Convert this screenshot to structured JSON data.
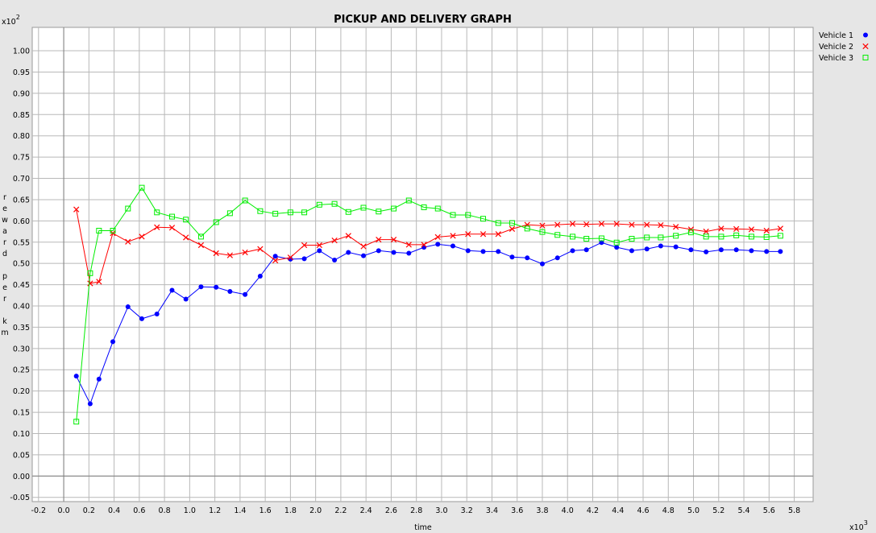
{
  "chart_data": {
    "type": "line",
    "title": "PICKUP AND DELIVERY GRAPH",
    "xlabel": "time",
    "ylabel": "reward per km",
    "x_scale_label": "x10",
    "x_scale_exp": "3",
    "y_scale_label": "x10",
    "y_scale_exp": "2",
    "xlim": [
      -0.25,
      5.95
    ],
    "ylim": [
      -0.06,
      1.055
    ],
    "x_ticks": [
      "-0.2",
      "0.0",
      "0.2",
      "0.4",
      "0.6",
      "0.8",
      "1.0",
      "1.2",
      "1.4",
      "1.6",
      "1.8",
      "2.0",
      "2.2",
      "2.4",
      "2.6",
      "2.8",
      "3.0",
      "3.2",
      "3.4",
      "3.6",
      "3.8",
      "4.0",
      "4.2",
      "4.4",
      "4.6",
      "4.8",
      "5.0",
      "5.2",
      "5.4",
      "5.6",
      "5.8"
    ],
    "y_ticks": [
      "-0.05",
      "0.00",
      "0.05",
      "0.10",
      "0.15",
      "0.20",
      "0.25",
      "0.30",
      "0.35",
      "0.40",
      "0.45",
      "0.50",
      "0.55",
      "0.60",
      "0.65",
      "0.70",
      "0.75",
      "0.80",
      "0.85",
      "0.90",
      "0.95",
      "1.00"
    ],
    "grid": true,
    "legend_position": "top-right",
    "series": [
      {
        "name": "Vehicle 1",
        "color": "#0000ff",
        "marker": "circle",
        "x": [
          0.1,
          0.21,
          0.28,
          0.39,
          0.51,
          0.62,
          0.74,
          0.86,
          0.97,
          1.09,
          1.21,
          1.32,
          1.44,
          1.56,
          1.68,
          1.8,
          1.91,
          2.03,
          2.15,
          2.26,
          2.38,
          2.5,
          2.62,
          2.74,
          2.86,
          2.97,
          3.09,
          3.21,
          3.33,
          3.45,
          3.56,
          3.68,
          3.8,
          3.92,
          4.04,
          4.15,
          4.27,
          4.39,
          4.51,
          4.63,
          4.74,
          4.86,
          4.98,
          5.1,
          5.22,
          5.34,
          5.46,
          5.58,
          5.69
        ],
        "y": [
          0.235,
          0.17,
          0.228,
          0.316,
          0.398,
          0.37,
          0.381,
          0.437,
          0.416,
          0.445,
          0.444,
          0.434,
          0.427,
          0.47,
          0.517,
          0.51,
          0.511,
          0.53,
          0.508,
          0.526,
          0.518,
          0.53,
          0.526,
          0.524,
          0.538,
          0.545,
          0.541,
          0.53,
          0.528,
          0.528,
          0.515,
          0.513,
          0.499,
          0.513,
          0.53,
          0.532,
          0.549,
          0.538,
          0.53,
          0.534,
          0.541,
          0.539,
          0.532,
          0.527,
          0.532,
          0.532,
          0.53,
          0.528,
          0.528
        ]
      },
      {
        "name": "Vehicle 2",
        "color": "#ff0000",
        "marker": "cross",
        "x": [
          0.1,
          0.21,
          0.28,
          0.39,
          0.51,
          0.62,
          0.74,
          0.86,
          0.97,
          1.09,
          1.21,
          1.32,
          1.44,
          1.56,
          1.68,
          1.8,
          1.91,
          2.03,
          2.15,
          2.26,
          2.38,
          2.5,
          2.62,
          2.74,
          2.86,
          2.97,
          3.09,
          3.21,
          3.33,
          3.45,
          3.56,
          3.68,
          3.8,
          3.92,
          4.04,
          4.15,
          4.27,
          4.39,
          4.51,
          4.63,
          4.74,
          4.86,
          4.98,
          5.1,
          5.22,
          5.34,
          5.46,
          5.58,
          5.69
        ],
        "y": [
          0.627,
          0.453,
          0.457,
          0.571,
          0.551,
          0.563,
          0.585,
          0.584,
          0.561,
          0.543,
          0.524,
          0.519,
          0.526,
          0.534,
          0.507,
          0.514,
          0.543,
          0.543,
          0.554,
          0.565,
          0.54,
          0.556,
          0.556,
          0.544,
          0.544,
          0.562,
          0.565,
          0.569,
          0.569,
          0.569,
          0.581,
          0.591,
          0.589,
          0.591,
          0.593,
          0.592,
          0.593,
          0.593,
          0.591,
          0.591,
          0.59,
          0.586,
          0.58,
          0.575,
          0.582,
          0.581,
          0.58,
          0.577,
          0.582
        ]
      },
      {
        "name": "Vehicle 3",
        "color": "#00ee00",
        "marker": "square",
        "x": [
          0.1,
          0.21,
          0.28,
          0.39,
          0.51,
          0.62,
          0.74,
          0.86,
          0.97,
          1.09,
          1.21,
          1.32,
          1.44,
          1.56,
          1.68,
          1.8,
          1.91,
          2.03,
          2.15,
          2.26,
          2.38,
          2.5,
          2.62,
          2.74,
          2.86,
          2.97,
          3.09,
          3.21,
          3.33,
          3.45,
          3.56,
          3.68,
          3.8,
          3.92,
          4.04,
          4.15,
          4.27,
          4.39,
          4.51,
          4.63,
          4.74,
          4.86,
          4.98,
          5.1,
          5.22,
          5.34,
          5.46,
          5.58,
          5.69
        ],
        "y": [
          0.128,
          0.477,
          0.577,
          0.577,
          0.629,
          0.678,
          0.62,
          0.61,
          0.603,
          0.563,
          0.597,
          0.618,
          0.648,
          0.623,
          0.617,
          0.62,
          0.62,
          0.638,
          0.64,
          0.621,
          0.631,
          0.622,
          0.629,
          0.648,
          0.632,
          0.629,
          0.614,
          0.614,
          0.605,
          0.595,
          0.595,
          0.582,
          0.574,
          0.567,
          0.563,
          0.558,
          0.559,
          0.549,
          0.558,
          0.561,
          0.561,
          0.565,
          0.573,
          0.563,
          0.563,
          0.566,
          0.563,
          0.562,
          0.565
        ]
      }
    ]
  }
}
